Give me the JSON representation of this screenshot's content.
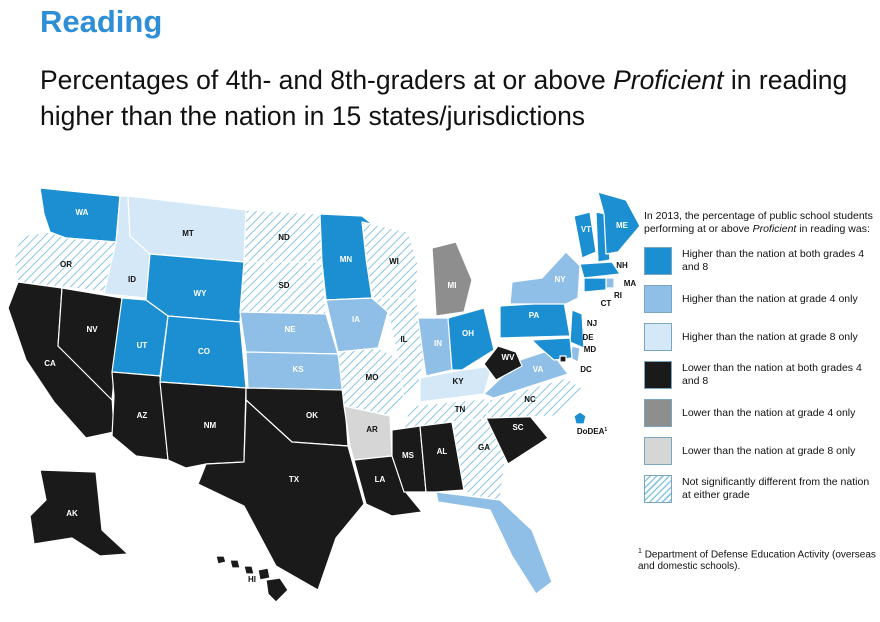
{
  "heading": "Reading",
  "title": {
    "before": "Percentages of 4th- and 8th-graders at or above ",
    "italic": "Proficient",
    "after": " in reading higher than the nation in 15 states/jurisdictions"
  },
  "legend": {
    "intro_before": "In 2013, the percentage of public school students performing at or above ",
    "intro_italic": "Proficient",
    "intro_after": " in reading was:",
    "items": [
      {
        "key": "high-both",
        "label": "Higher than the nation at both grades 4 and 8",
        "color": "#1b8fd2"
      },
      {
        "key": "high-4",
        "label": "Higher than the nation at grade 4 only",
        "color": "#8fbfe6"
      },
      {
        "key": "high-8",
        "label": "Higher than the nation at grade 8 only",
        "color": "#d4e8f7"
      },
      {
        "key": "low-both",
        "label": "Lower than the nation at both grades 4 and 8",
        "color": "#1a1a1a"
      },
      {
        "key": "low-4",
        "label": "Lower than the nation at grade 4 only",
        "color": "#8e8e8e"
      },
      {
        "key": "low-8",
        "label": "Lower than the nation at grade 8 only",
        "color": "#d6d6d6"
      },
      {
        "key": "nsd",
        "label": "Not significantly different from the nation at either grade",
        "color": "hatch"
      }
    ]
  },
  "footnote": {
    "marker": "1",
    "text": "Department of Defense Education Activity (overseas and domestic schools)."
  },
  "states": [
    {
      "abbr": "WA",
      "category": "high-both"
    },
    {
      "abbr": "OR",
      "category": "nsd"
    },
    {
      "abbr": "CA",
      "category": "low-both"
    },
    {
      "abbr": "NV",
      "category": "low-both"
    },
    {
      "abbr": "ID",
      "category": "high-8"
    },
    {
      "abbr": "MT",
      "category": "high-8"
    },
    {
      "abbr": "WY",
      "category": "high-both"
    },
    {
      "abbr": "UT",
      "category": "high-both"
    },
    {
      "abbr": "AZ",
      "category": "low-both"
    },
    {
      "abbr": "CO",
      "category": "high-both"
    },
    {
      "abbr": "NM",
      "category": "low-both"
    },
    {
      "abbr": "ND",
      "category": "nsd"
    },
    {
      "abbr": "SD",
      "category": "nsd"
    },
    {
      "abbr": "NE",
      "category": "high-4"
    },
    {
      "abbr": "KS",
      "category": "high-4"
    },
    {
      "abbr": "OK",
      "category": "low-both"
    },
    {
      "abbr": "TX",
      "category": "low-both"
    },
    {
      "abbr": "MN",
      "category": "high-both"
    },
    {
      "abbr": "IA",
      "category": "high-4"
    },
    {
      "abbr": "MO",
      "category": "nsd"
    },
    {
      "abbr": "AR",
      "category": "low-8"
    },
    {
      "abbr": "LA",
      "category": "low-both"
    },
    {
      "abbr": "WI",
      "category": "nsd"
    },
    {
      "abbr": "IL",
      "category": "nsd"
    },
    {
      "abbr": "MI",
      "category": "low-4"
    },
    {
      "abbr": "IN",
      "category": "high-4"
    },
    {
      "abbr": "OH",
      "category": "high-both"
    },
    {
      "abbr": "KY",
      "category": "high-8"
    },
    {
      "abbr": "TN",
      "category": "nsd"
    },
    {
      "abbr": "MS",
      "category": "low-both"
    },
    {
      "abbr": "AL",
      "category": "low-both"
    },
    {
      "abbr": "GA",
      "category": "nsd"
    },
    {
      "abbr": "FL",
      "category": "high-4"
    },
    {
      "abbr": "SC",
      "category": "low-both"
    },
    {
      "abbr": "NC",
      "category": "nsd"
    },
    {
      "abbr": "VA",
      "category": "high-4"
    },
    {
      "abbr": "WV",
      "category": "low-both"
    },
    {
      "abbr": "PA",
      "category": "high-both"
    },
    {
      "abbr": "NY",
      "category": "high-4"
    },
    {
      "abbr": "VT",
      "category": "high-both"
    },
    {
      "abbr": "NH",
      "category": "high-both"
    },
    {
      "abbr": "ME",
      "category": "high-both"
    },
    {
      "abbr": "MA",
      "category": "high-both"
    },
    {
      "abbr": "RI",
      "category": "high-4"
    },
    {
      "abbr": "CT",
      "category": "high-both"
    },
    {
      "abbr": "NJ",
      "category": "high-both"
    },
    {
      "abbr": "DE",
      "category": "high-4"
    },
    {
      "abbr": "MD",
      "category": "high-both"
    },
    {
      "abbr": "DC",
      "category": "low-both"
    },
    {
      "abbr": "AK",
      "category": "low-both"
    },
    {
      "abbr": "HI",
      "category": "low-both"
    },
    {
      "abbr": "DoDEA",
      "category": "high-both",
      "marker": "1"
    }
  ]
}
